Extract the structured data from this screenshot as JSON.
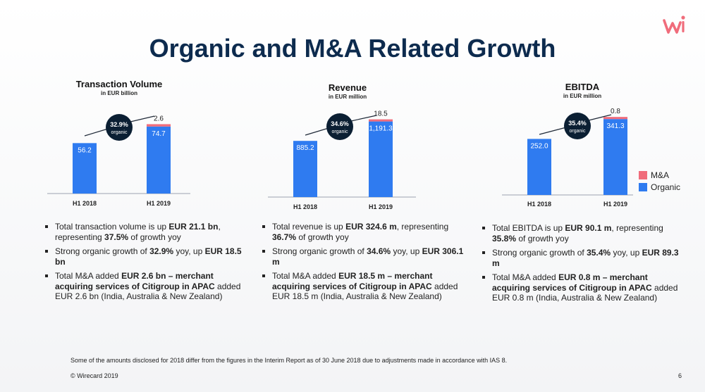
{
  "slide": {
    "title": "Organic and M&A Related Growth",
    "footnote": "Some of the amounts disclosed for 2018 differ from the figures in the Interim Report as of 30 June 2018 due to adjustments made in accordance with IAS 8.",
    "copyright": "© Wirecard 2019",
    "page_number": "6",
    "logo_icon": "wirecard-logo-icon",
    "accent_color": "#f06c7b"
  },
  "legend": {
    "ma": "M&A",
    "organic": "Organic",
    "ma_color": "#f06c7b",
    "organic_color": "#2f7bf0"
  },
  "chart_data": [
    {
      "type": "bar",
      "stacked": true,
      "title": "Transaction Volume",
      "subtitle": "in EUR billion",
      "categories": [
        "H1 2018",
        "H1 2019"
      ],
      "series": [
        {
          "name": "Organic",
          "values": [
            56.2,
            74.7
          ]
        },
        {
          "name": "M&A",
          "values": [
            0,
            2.6
          ]
        }
      ],
      "labels": {
        "organic": [
          "56.2",
          "74.7"
        ],
        "ma": [
          "",
          "2.6"
        ]
      },
      "annotation": {
        "value": "32.9%",
        "text": "organic"
      },
      "ylim": [
        0,
        80
      ]
    },
    {
      "type": "bar",
      "stacked": true,
      "title": "Revenue",
      "subtitle": "in EUR million",
      "categories": [
        "H1 2018",
        "H1 2019"
      ],
      "series": [
        {
          "name": "Organic",
          "values": [
            885.2,
            1191.3
          ]
        },
        {
          "name": "M&A",
          "values": [
            0,
            18.5
          ]
        }
      ],
      "labels": {
        "organic": [
          "885.2",
          "1,191.3"
        ],
        "ma": [
          "",
          "18.5"
        ]
      },
      "annotation": {
        "value": "34.6%",
        "text": "organic"
      },
      "ylim": [
        0,
        1220
      ]
    },
    {
      "type": "bar",
      "stacked": true,
      "title": "EBITDA",
      "subtitle": "in EUR million",
      "categories": [
        "H1 2018",
        "H1 2019"
      ],
      "series": [
        {
          "name": "Organic",
          "values": [
            252.0,
            341.3
          ]
        },
        {
          "name": "M&A",
          "values": [
            0,
            0.8
          ]
        }
      ],
      "labels": {
        "organic": [
          "252.0",
          "341.3"
        ],
        "ma": [
          "",
          "0.8"
        ]
      },
      "annotation": {
        "value": "35.4%",
        "text": "organic"
      },
      "ylim": [
        0,
        345
      ]
    }
  ],
  "bullets": [
    [
      [
        {
          "t": "Total transaction volume is up "
        },
        {
          "t": "EUR 21.1 bn",
          "b": true
        },
        {
          "t": ", representing "
        },
        {
          "t": "37.5%",
          "b": true
        },
        {
          "t": " of growth yoy"
        }
      ],
      [
        {
          "t": "Strong organic growth of "
        },
        {
          "t": "32.9%",
          "b": true
        },
        {
          "t": " yoy, up "
        },
        {
          "t": "EUR 18.5 bn",
          "b": true
        }
      ],
      [
        {
          "t": "Total M&A added "
        },
        {
          "t": "EUR 2.6 bn – merchant acquiring services of Citigroup in APAC",
          "b": true
        },
        {
          "t": " added EUR 2.6 bn (India, Australia & New Zealand)"
        }
      ]
    ],
    [
      [
        {
          "t": "Total revenue is up "
        },
        {
          "t": "EUR  324.6 m",
          "b": true
        },
        {
          "t": ", representing "
        },
        {
          "t": "36.7%",
          "b": true
        },
        {
          "t": " of growth yoy"
        }
      ],
      [
        {
          "t": "Strong organic growth of "
        },
        {
          "t": "34.6%",
          "b": true
        },
        {
          "t": " yoy, up "
        },
        {
          "t": "EUR 306.1 m",
          "b": true
        }
      ],
      [
        {
          "t": "Total M&A added "
        },
        {
          "t": "EUR 18.5 m – merchant acquiring services of Citigroup in APAC",
          "b": true
        },
        {
          "t": " added EUR 18.5 m (India, Australia & New Zealand)"
        }
      ]
    ],
    [
      [
        {
          "t": "Total EBITDA is up "
        },
        {
          "t": "EUR 90.1 m",
          "b": true
        },
        {
          "t": ", representing "
        },
        {
          "t": "35.8%",
          "b": true
        },
        {
          "t": " of growth yoy"
        }
      ],
      [
        {
          "t": "Strong organic growth of "
        },
        {
          "t": "35.4%",
          "b": true
        },
        {
          "t": " yoy, up "
        },
        {
          "t": "EUR 89.3 m",
          "b": true
        }
      ],
      [
        {
          "t": "Total M&A added "
        },
        {
          "t": "EUR 0.8 m – merchant acquiring services of Citigroup in APAC",
          "b": true
        },
        {
          "t": " added EUR 0.8 m (India, Australia & New Zealand)"
        }
      ]
    ]
  ]
}
